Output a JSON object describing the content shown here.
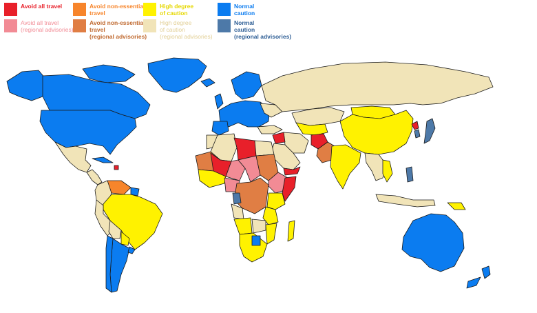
{
  "legend": {
    "items": [
      {
        "label": "Avoid all travel",
        "color": "#e8202a"
      },
      {
        "label": "Avoid non-essential\ntravel",
        "color": "#f7852b"
      },
      {
        "label": "High degree\nof caution",
        "color": "#fff200"
      },
      {
        "label": "Normal\ncaution",
        "color": "#0b7cf0"
      },
      {
        "label": "Avoid all travel\n(regional advisories)",
        "color": "#f28b95"
      },
      {
        "label": "Avoid non-essential\ntravel\n(regional advisories)",
        "color": "#e07e44"
      },
      {
        "label": "High degree\nof caution\n(regional advisories)",
        "color": "#f1e4b8"
      },
      {
        "label": "Normal\ncaution\n(regional advisories)",
        "color": "#4d79a8"
      }
    ]
  },
  "map": {
    "ocean_color": "#ffffff",
    "border_color": "#1a1a1a"
  }
}
